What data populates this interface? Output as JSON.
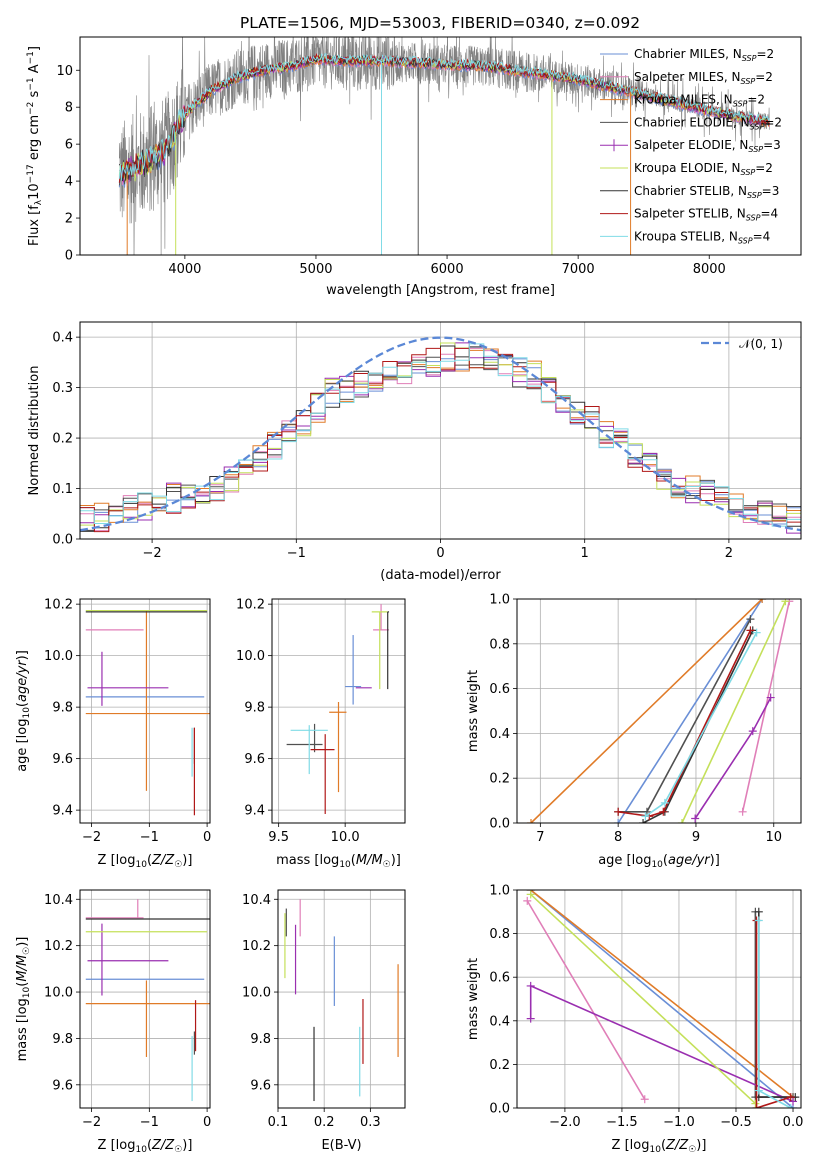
{
  "figure": {
    "title": "PLATE=1506, MJD=53003, FIBERID=0340, z=0.092"
  },
  "models": [
    {
      "name": "Chabrier MILES, N_SSP=2",
      "library": "Chabrier MILES",
      "nssp": "2",
      "color": "#6a8fd6"
    },
    {
      "name": "Salpeter MILES, N_SSP=2",
      "library": "Salpeter MILES",
      "nssp": "2",
      "color": "#e07fb8"
    },
    {
      "name": "Kroupa MILES, N_SSP=2",
      "library": "Kroupa MILES",
      "nssp": "2",
      "color": "#e07b28"
    },
    {
      "name": "Chabrier ELODIE, N_SSP=2",
      "library": "Chabrier ELODIE",
      "nssp": "2",
      "color": "#505050"
    },
    {
      "name": "Salpeter ELODIE, N_SSP=3",
      "library": "Salpeter ELODIE",
      "nssp": "3",
      "color": "#9a2fb0"
    },
    {
      "name": "Kroupa ELODIE, N_SSP=2",
      "library": "Kroupa ELODIE",
      "nssp": "2",
      "color": "#c4e05a"
    },
    {
      "name": "Chabrier STELIB, N_SSP=3",
      "library": "Chabrier STELIB",
      "nssp": "3",
      "color": "#333333"
    },
    {
      "name": "Salpeter STELIB, N_SSP=4",
      "library": "Salpeter STELIB",
      "nssp": "4",
      "color": "#b01818"
    },
    {
      "name": "Kroupa STELIB, N_SSP=4",
      "library": "Kroupa STELIB",
      "nssp": "4",
      "color": "#80dbe6"
    }
  ],
  "chart_data": [
    {
      "id": "spectrum",
      "type": "line",
      "xlabel": "wavelength [Angstrom, rest frame]",
      "ylabel": "Flux [f_λ 10^-17 erg cm^-2 s^-1 A^-1]",
      "xlim": [
        3200,
        8700
      ],
      "ylim": [
        0,
        11.8
      ],
      "xticks": [
        4000,
        5000,
        6000,
        7000,
        8000
      ],
      "yticks": [
        0,
        2,
        4,
        6,
        8,
        10
      ],
      "grid": false,
      "legend": "right",
      "data_color": "#808080",
      "model_continuum": {
        "x": [
          3500,
          3700,
          3850,
          4000,
          4200,
          4400,
          4600,
          4800,
          5000,
          5200,
          5500,
          5800,
          6000,
          6300,
          6500,
          6800,
          7000,
          7300,
          7600,
          8000,
          8200,
          8450
        ],
        "y": [
          4.3,
          5.0,
          5.6,
          7.6,
          8.9,
          9.6,
          10.0,
          10.2,
          10.6,
          10.5,
          10.5,
          10.4,
          10.3,
          10.2,
          10.0,
          9.7,
          9.5,
          9.0,
          8.5,
          7.8,
          7.5,
          7.2
        ]
      }
    },
    {
      "id": "residuals",
      "type": "histogram",
      "xlabel": "(data-model)/error",
      "ylabel": "Normed distribution",
      "xlim": [
        -2.5,
        2.5
      ],
      "ylim": [
        0,
        0.43
      ],
      "xticks": [
        -2,
        -1,
        0,
        1,
        2
      ],
      "yticks": [
        0.0,
        0.1,
        0.2,
        0.3,
        0.4
      ],
      "grid": true,
      "legend": "top-right",
      "reference_curve": {
        "label": "𝒩(0, 1)",
        "mean": 0,
        "sigma": 1,
        "color": "#5b88d6"
      },
      "bin_width": 0.1,
      "bin_centers": [
        -2.45,
        -2.35,
        -2.25,
        -2.15,
        -2.05,
        -1.95,
        -1.85,
        -1.75,
        -1.65,
        -1.55,
        -1.45,
        -1.35,
        -1.25,
        -1.15,
        -1.05,
        -0.95,
        -0.85,
        -0.75,
        -0.65,
        -0.55,
        -0.45,
        -0.35,
        -0.25,
        -0.15,
        -0.05,
        0.05,
        0.15,
        0.25,
        0.35,
        0.45,
        0.55,
        0.65,
        0.75,
        0.85,
        0.95,
        1.05,
        1.15,
        1.25,
        1.35,
        1.45,
        1.55,
        1.65,
        1.75,
        1.85,
        1.95,
        2.05,
        2.15,
        2.25,
        2.35,
        2.45
      ],
      "base_values": [
        0.042,
        0.043,
        0.051,
        0.06,
        0.067,
        0.074,
        0.081,
        0.087,
        0.094,
        0.105,
        0.12,
        0.137,
        0.16,
        0.185,
        0.212,
        0.234,
        0.26,
        0.29,
        0.3,
        0.31,
        0.322,
        0.33,
        0.335,
        0.34,
        0.35,
        0.362,
        0.362,
        0.366,
        0.365,
        0.345,
        0.33,
        0.325,
        0.3,
        0.27,
        0.25,
        0.235,
        0.21,
        0.19,
        0.165,
        0.142,
        0.128,
        0.11,
        0.1,
        0.09,
        0.08,
        0.072,
        0.062,
        0.055,
        0.047,
        0.04
      ]
    },
    {
      "id": "age_vs_Z",
      "type": "scatter",
      "xlabel": "Z [log10(Z/Z☉)]",
      "ylabel": "age [log10(age/yr)]",
      "xlim": [
        -2.2,
        0.05
      ],
      "ylim": [
        9.35,
        10.22
      ],
      "xticks": [
        -2,
        -1,
        0
      ],
      "yticks": [
        9.4,
        9.6,
        9.8,
        10.0,
        10.2
      ],
      "grid": true,
      "points": [
        {
          "model": 0,
          "x": -0.9,
          "xerr": [
            1.2,
            0.85
          ],
          "y": 9.84,
          "yerr": [
            0,
            0
          ]
        },
        {
          "model": 1,
          "x": -1.2,
          "xerr": [
            0.9,
            0.1
          ],
          "y": 10.1,
          "yerr": [
            0,
            0
          ]
        },
        {
          "model": 2,
          "x": -1.05,
          "xerr": [
            1.05,
            1.1
          ],
          "y": 9.775,
          "yerr": [
            0.3,
            0.4
          ]
        },
        {
          "model": 3,
          "x": -0.22,
          "xerr": [
            0,
            0
          ],
          "y": 9.64,
          "yerr": [
            0.06,
            0.08
          ]
        },
        {
          "model": 4,
          "x": -1.82,
          "xerr": [
            0.25,
            1.15
          ],
          "y": 9.875,
          "yerr": [
            0.07,
            0.14
          ]
        },
        {
          "model": 5,
          "x": -1.0,
          "xerr": [
            1.1,
            1.0
          ],
          "y": 10.175,
          "yerr": [
            0,
            0
          ]
        },
        {
          "model": 6,
          "x": -1.0,
          "xerr": [
            1.1,
            1.0
          ],
          "y": 10.17,
          "yerr": [
            0,
            0
          ]
        },
        {
          "model": 7,
          "x": -0.22,
          "xerr": [
            0,
            0
          ],
          "y": 9.64,
          "yerr": [
            0.26,
            0.08
          ]
        },
        {
          "model": 8,
          "x": -0.26,
          "xerr": [
            0,
            0
          ],
          "y": 9.63,
          "yerr": [
            0.1,
            0.09
          ]
        }
      ]
    },
    {
      "id": "age_vs_mass",
      "type": "scatter",
      "xlabel": "mass [log10(M/M☉)]",
      "ylabel": "",
      "xlim": [
        9.45,
        10.45
      ],
      "ylim": [
        9.35,
        10.22
      ],
      "xticks": [
        9.5,
        10.0
      ],
      "yticks": [
        9.4,
        9.6,
        9.8,
        10.0,
        10.2
      ],
      "grid": true,
      "points": [
        {
          "model": 0,
          "x": 10.06,
          "xerr": [
            0.06,
            0.06
          ],
          "y": 9.88,
          "yerr": [
            0.07,
            0.2
          ]
        },
        {
          "model": 1,
          "x": 10.27,
          "xerr": [
            0.06,
            0.06
          ],
          "y": 10.1,
          "yerr": [
            0,
            0.1
          ]
        },
        {
          "model": 2,
          "x": 9.95,
          "xerr": [
            0.07,
            0.06
          ],
          "y": 9.78,
          "yerr": [
            0.31,
            0.04
          ]
        },
        {
          "model": 3,
          "x": 9.77,
          "xerr": [
            0.21,
            0.06
          ],
          "y": 9.655,
          "yerr": [
            0.03,
            0.08
          ]
        },
        {
          "model": 4,
          "x": 10.14,
          "xerr": [
            0.06,
            0.06
          ],
          "y": 9.875,
          "yerr": [
            0,
            0
          ]
        },
        {
          "model": 5,
          "x": 10.26,
          "xerr": [
            0.06,
            0.06
          ],
          "y": 10.17,
          "yerr": [
            0.3,
            0
          ]
        },
        {
          "model": 6,
          "x": 10.32,
          "xerr": [
            0,
            0.01
          ],
          "y": 10.17,
          "yerr": [
            0.3,
            0
          ]
        },
        {
          "model": 7,
          "x": 9.85,
          "xerr": [
            0.11,
            0.07
          ],
          "y": 9.635,
          "yerr": [
            0.25,
            0.06
          ]
        },
        {
          "model": 8,
          "x": 9.73,
          "xerr": [
            0.14,
            0.14
          ],
          "y": 9.71,
          "yerr": [
            0.17,
            0.02
          ]
        }
      ]
    },
    {
      "id": "mass_weight_vs_age",
      "type": "line",
      "xlabel": "age [log10(age/yr)]",
      "ylabel": "mass weight",
      "xlim": [
        6.7,
        10.35
      ],
      "ylim": [
        0,
        1
      ],
      "xticks": [
        7,
        8,
        9,
        10
      ],
      "yticks": [
        0.0,
        0.2,
        0.4,
        0.6,
        0.8,
        1.0
      ],
      "grid": true,
      "series": [
        {
          "model": 0,
          "x": [
            8.0,
            9.85
          ],
          "y": [
            0.0,
            1.0
          ]
        },
        {
          "model": 1,
          "x": [
            9.6,
            10.2
          ],
          "y": [
            0.05,
            0.99
          ]
        },
        {
          "model": 2,
          "x": [
            6.88,
            9.85
          ],
          "y": [
            0.0,
            1.0
          ]
        },
        {
          "model": 3,
          "x": [
            8.0,
            8.37,
            9.7
          ],
          "y": [
            0.05,
            0.05,
            0.91
          ]
        },
        {
          "model": 4,
          "x": [
            8.99,
            9.73,
            9.96
          ],
          "y": [
            0.02,
            0.41,
            0.56
          ]
        },
        {
          "model": 5,
          "x": [
            8.82,
            10.15
          ],
          "y": [
            0.0,
            0.99
          ]
        },
        {
          "model": 6,
          "x": [
            8.32,
            8.6,
            9.73
          ],
          "y": [
            0.0,
            0.05,
            0.86
          ]
        },
        {
          "model": 7,
          "x": [
            8.0,
            8.4,
            8.58,
            9.7
          ],
          "y": [
            0.05,
            0.03,
            0.05,
            0.86
          ]
        },
        {
          "model": 8,
          "x": [
            8.35,
            8.6,
            9.78
          ],
          "y": [
            0.03,
            0.09,
            0.85
          ]
        }
      ]
    },
    {
      "id": "mass_vs_Z",
      "type": "scatter",
      "xlabel": "Z [log10(Z/Z☉)]",
      "ylabel": "mass [log10(M/M☉)]",
      "xlim": [
        -2.2,
        0.05
      ],
      "ylim": [
        9.5,
        10.44
      ],
      "xticks": [
        -2,
        -1,
        0
      ],
      "yticks": [
        9.6,
        9.8,
        10.0,
        10.2,
        10.4
      ],
      "grid": true,
      "points": [
        {
          "model": 0,
          "x": -1.05,
          "xerr": [
            1.05,
            1.0
          ],
          "y": 10.055,
          "yerr": [
            0,
            0
          ]
        },
        {
          "model": 1,
          "x": -1.2,
          "xerr": [
            0.9,
            0.1
          ],
          "y": 10.32,
          "yerr": [
            0,
            0.08
          ]
        },
        {
          "model": 2,
          "x": -1.05,
          "xerr": [
            1.05,
            1.1
          ],
          "y": 9.95,
          "yerr": [
            0.23,
            0.1
          ]
        },
        {
          "model": 3,
          "x": -0.22,
          "xerr": [
            0,
            0
          ],
          "y": 9.77,
          "yerr": [
            0.04,
            0.06
          ]
        },
        {
          "model": 4,
          "x": -1.82,
          "xerr": [
            0.25,
            1.15
          ],
          "y": 10.135,
          "yerr": [
            0.15,
            0.16
          ]
        },
        {
          "model": 5,
          "x": -1.0,
          "xerr": [
            1.1,
            1.0
          ],
          "y": 10.26,
          "yerr": [
            0,
            0
          ]
        },
        {
          "model": 6,
          "x": -1.0,
          "xerr": [
            1.1,
            1.1
          ],
          "y": 10.315,
          "yerr": [
            0,
            0
          ]
        },
        {
          "model": 7,
          "x": -0.2,
          "xerr": [
            0,
            0
          ],
          "y": 9.855,
          "yerr": [
            0.11,
            0.11
          ]
        },
        {
          "model": 8,
          "x": -0.26,
          "xerr": [
            0,
            0
          ],
          "y": 9.73,
          "yerr": [
            0.2,
            0.08
          ]
        }
      ]
    },
    {
      "id": "mass_vs_EBV",
      "type": "scatter",
      "xlabel": "E(B-V)",
      "ylabel": "",
      "xlim": [
        0.1,
        0.375
      ],
      "ylim": [
        9.5,
        10.44
      ],
      "xticks": [
        0.1,
        0.2,
        0.3
      ],
      "yticks": [
        9.6,
        9.8,
        10.0,
        10.2,
        10.4
      ],
      "grid": true,
      "points": [
        {
          "model": 0,
          "x": 0.222,
          "xerr": [
            0,
            0
          ],
          "y": 10.09,
          "yerr": [
            0.15,
            0.15
          ]
        },
        {
          "model": 1,
          "x": 0.148,
          "xerr": [
            0,
            0
          ],
          "y": 10.32,
          "yerr": [
            0.08,
            0.08
          ]
        },
        {
          "model": 2,
          "x": 0.36,
          "xerr": [
            0,
            0
          ],
          "y": 9.92,
          "yerr": [
            0.2,
            0.2
          ]
        },
        {
          "model": 3,
          "x": 0.118,
          "xerr": [
            0,
            0
          ],
          "y": 10.3,
          "yerr": [
            0.06,
            0.06
          ]
        },
        {
          "model": 4,
          "x": 0.138,
          "xerr": [
            0,
            0
          ],
          "y": 10.14,
          "yerr": [
            0.15,
            0.15
          ]
        },
        {
          "model": 5,
          "x": 0.115,
          "xerr": [
            0,
            0
          ],
          "y": 10.2,
          "yerr": [
            0.14,
            0.14
          ]
        },
        {
          "model": 6,
          "x": 0.178,
          "xerr": [
            0,
            0
          ],
          "y": 9.69,
          "yerr": [
            0.16,
            0.16
          ]
        },
        {
          "model": 7,
          "x": 0.284,
          "xerr": [
            0,
            0
          ],
          "y": 9.83,
          "yerr": [
            0.14,
            0.14
          ]
        },
        {
          "model": 8,
          "x": 0.277,
          "xerr": [
            0,
            0
          ],
          "y": 9.7,
          "yerr": [
            0.15,
            0.15
          ]
        }
      ]
    },
    {
      "id": "mass_weight_vs_Z",
      "type": "line",
      "xlabel": "Z [log10(Z/Z☉)]",
      "ylabel": "mass weight",
      "xlim": [
        -2.42,
        0.07
      ],
      "ylim": [
        0,
        1
      ],
      "xticks": [
        -2.0,
        -1.5,
        -1.0,
        -0.5,
        0.0
      ],
      "yticks": [
        0.0,
        0.2,
        0.4,
        0.6,
        0.8,
        1.0
      ],
      "grid": true,
      "series": [
        {
          "model": 0,
          "x": [
            -2.3,
            0.0
          ],
          "y": [
            1.0,
            0.0
          ]
        },
        {
          "model": 1,
          "x": [
            -2.33,
            -1.3
          ],
          "y": [
            0.95,
            0.04
          ]
        },
        {
          "model": 2,
          "x": [
            -2.3,
            0.0
          ],
          "y": [
            1.0,
            0.05
          ]
        },
        {
          "model": 3,
          "x": [
            -0.33,
            -0.33,
            0.0
          ],
          "y": [
            0.9,
            0.05,
            0.05
          ]
        },
        {
          "model": 4,
          "x": [
            -2.3,
            -2.3,
            0.0
          ],
          "y": [
            0.41,
            0.56,
            0.03
          ]
        },
        {
          "model": 5,
          "x": [
            -2.3,
            -0.33
          ],
          "y": [
            0.98,
            0.02
          ]
        },
        {
          "model": 6,
          "x": [
            -0.3,
            -0.3,
            0.02
          ],
          "y": [
            0.9,
            0.05,
            0.05
          ]
        },
        {
          "model": 7,
          "x": [
            -0.32,
            -0.32,
            -0.02
          ],
          "y": [
            0.86,
            0.0,
            0.05
          ]
        },
        {
          "model": 8,
          "x": [
            -0.3,
            -0.3,
            -0.02
          ],
          "y": [
            0.86,
            0.08,
            0.0
          ]
        }
      ]
    }
  ]
}
